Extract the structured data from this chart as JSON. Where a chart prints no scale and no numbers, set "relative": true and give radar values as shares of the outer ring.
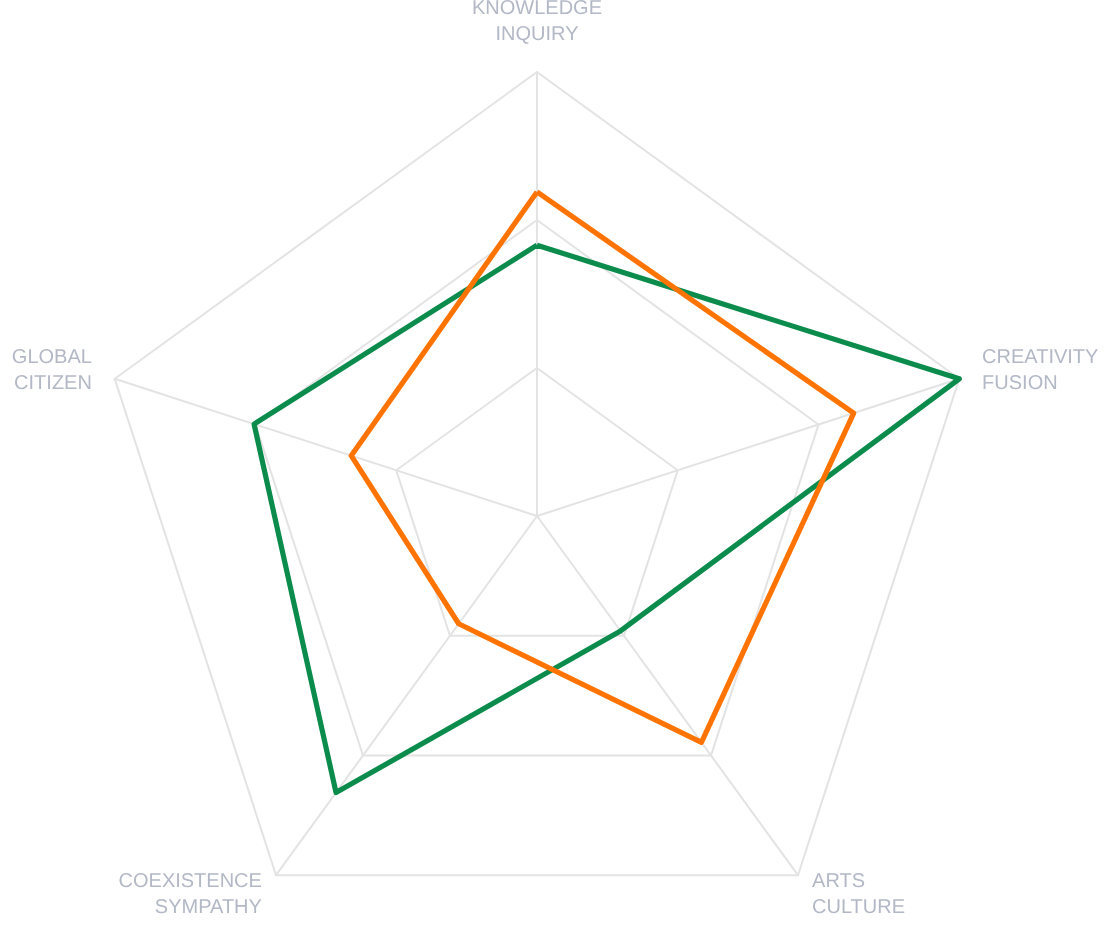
{
  "chart_data": {
    "type": "radar",
    "categories": [
      "KNOWLEDGE INQUIRY",
      "CREATIVITY FUSION",
      "ARTS CULTURE",
      "COEXISTENCE SYMPATHY",
      "GLOBAL CITIZEN"
    ],
    "relative": true,
    "grid": true,
    "marker": "none",
    "line_style": "solid",
    "series": [
      {
        "color": "#0b8c4c",
        "values": [
          0.61,
          1.0,
          0.32,
          0.77,
          0.67
        ]
      },
      {
        "color": "#ff7300",
        "values": [
          0.73,
          0.75,
          0.63,
          0.3,
          0.44
        ]
      }
    ]
  }
}
